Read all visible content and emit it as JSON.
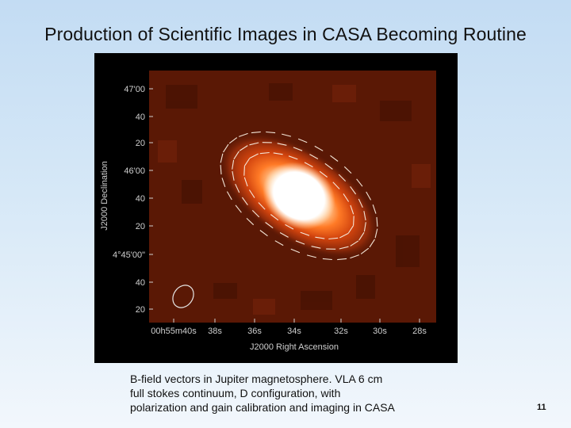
{
  "slide": {
    "title": "Production of Scientific Images in CASA Becoming Routine",
    "page_number": "11"
  },
  "figure": {
    "y_axis_label": "J2000 Declination",
    "x_axis_label": "J2000 Right Ascension",
    "y_ticks": [
      "47'00",
      "40",
      "20",
      "46'00",
      "40",
      "20",
      "4°45'00\"",
      "40",
      "20"
    ],
    "x_ticks": [
      "00h55m40s",
      "38s",
      "36s",
      "34s",
      "32s",
      "30s",
      "28s"
    ],
    "colors": {
      "background": "#5a1805",
      "core": "#ffffff",
      "glow": "#ff6a1a"
    }
  },
  "caption": {
    "lines": [
      "B-field vectors in Jupiter magnetosphere.  VLA  6 cm",
      "full stokes continuum, D configuration, with",
      "polarization and gain calibration and imaging in CASA"
    ]
  }
}
